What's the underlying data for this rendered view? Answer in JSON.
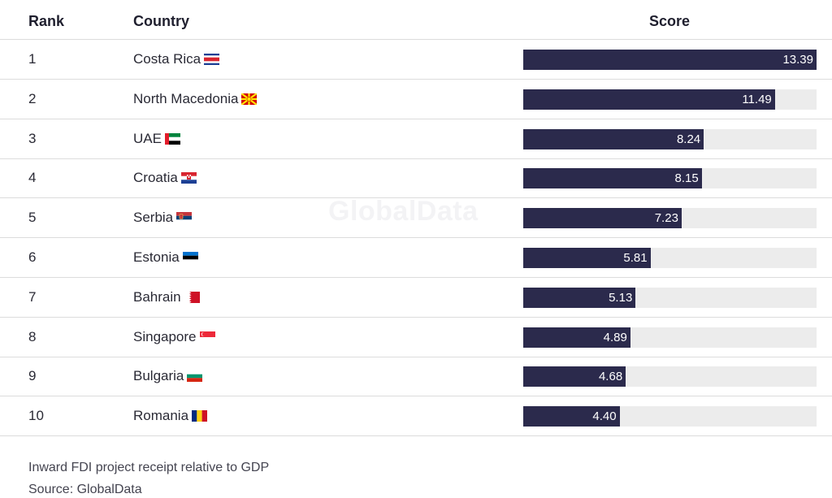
{
  "headers": {
    "rank": "Rank",
    "country": "Country",
    "score": "Score"
  },
  "watermark": "GlobalData",
  "footnote": "Inward FDI project receipt relative to GDP",
  "source": "Source: GlobalData",
  "colors": {
    "bar": "#2b2a4c",
    "track": "#ececec"
  },
  "chart_data": {
    "type": "bar",
    "orientation": "horizontal",
    "xlim": [
      0,
      13.39
    ],
    "categories": [
      "Costa Rica",
      "North Macedonia",
      "UAE",
      "Croatia",
      "Serbia",
      "Estonia",
      "Bahrain",
      "Singapore",
      "Bulgaria",
      "Romania"
    ],
    "ranks": [
      "1",
      "2",
      "3",
      "4",
      "5",
      "6",
      "7",
      "8",
      "9",
      "10"
    ],
    "values": [
      13.39,
      11.49,
      8.24,
      8.15,
      7.23,
      5.81,
      5.13,
      4.89,
      4.68,
      4.4
    ],
    "value_labels": [
      "13.39",
      "11.49",
      "8.24",
      "8.15",
      "7.23",
      "5.81",
      "5.13",
      "4.89",
      "4.68",
      "4.40"
    ],
    "flags": [
      "costa-rica-flag-icon",
      "north-macedonia-flag-icon",
      "uae-flag-icon",
      "croatia-flag-icon",
      "serbia-flag-icon",
      "estonia-flag-icon",
      "bahrain-flag-icon",
      "singapore-flag-icon",
      "bulgaria-flag-icon",
      "romania-flag-icon"
    ]
  }
}
